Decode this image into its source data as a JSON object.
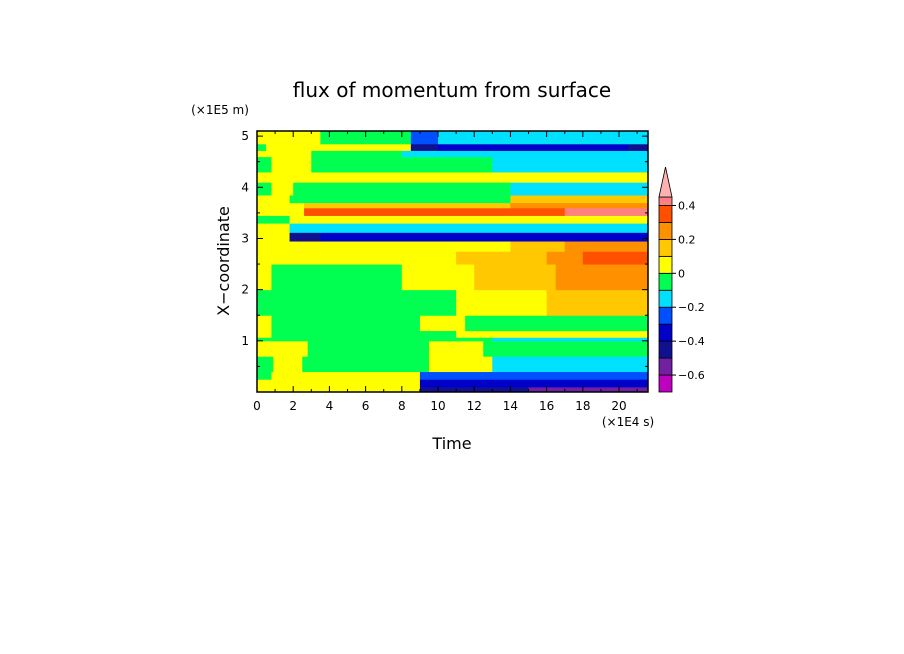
{
  "chart_data": {
    "type": "heatmap",
    "title": "flux of momentum from surface",
    "xlabel": "Time",
    "ylabel": "X−coordinate",
    "x_scale_label": "(×1E4 s)",
    "y_scale_label": "(×1E5 m)",
    "xlim": [
      0,
      21.6
    ],
    "ylim": [
      0,
      5.1
    ],
    "x_ticks": [
      0,
      2,
      4,
      6,
      8,
      10,
      12,
      14,
      16,
      18,
      20
    ],
    "x_tick_labels": [
      "0",
      "2",
      "4",
      "6",
      "8",
      "10",
      "12",
      "14",
      "16",
      "18",
      "20"
    ],
    "y_ticks": [
      1,
      2,
      3,
      4,
      5
    ],
    "y_tick_labels": [
      "1",
      "2",
      "3",
      "4",
      "5"
    ],
    "colorbar": {
      "levels": [
        -0.7,
        -0.6,
        -0.5,
        -0.4,
        -0.3,
        -0.2,
        -0.1,
        0,
        0.1,
        0.2,
        0.3,
        0.4,
        0.45
      ],
      "colors": [
        "#c000c0",
        "#7020a0",
        "#101090",
        "#0000c8",
        "#0050ff",
        "#00e0ff",
        "#00ff50",
        "#ffff00",
        "#ffc800",
        "#ff9000",
        "#ff5000",
        "#ff8080"
      ],
      "extend_color": "#ffb0b0",
      "tick_values": [
        -0.6,
        -0.4,
        -0.2,
        0,
        0.2,
        0.4
      ],
      "tick_labels": [
        "−0.6",
        "−0.4",
        "−0.2",
        "0",
        "0.2",
        "0.4"
      ]
    },
    "bands": [
      {
        "y0": 0.0,
        "y1": 0.1,
        "segments": [
          [
            0,
            9,
            0.05
          ],
          [
            9,
            15,
            -0.45
          ],
          [
            15,
            21.6,
            -0.55
          ]
        ]
      },
      {
        "y0": 0.1,
        "y1": 0.25,
        "segments": [
          [
            0,
            2,
            0.05
          ],
          [
            2,
            9,
            0.05
          ],
          [
            9,
            21.6,
            -0.35
          ]
        ]
      },
      {
        "y0": 0.25,
        "y1": 0.4,
        "segments": [
          [
            0,
            0.8,
            -0.05
          ],
          [
            0.8,
            9,
            0.05
          ],
          [
            9,
            21.6,
            -0.25
          ]
        ]
      },
      {
        "y0": 0.4,
        "y1": 0.7,
        "segments": [
          [
            0,
            0.9,
            -0.05
          ],
          [
            0.9,
            2.5,
            0.05
          ],
          [
            2.5,
            9.5,
            -0.05
          ],
          [
            9.5,
            13,
            0.05
          ],
          [
            13,
            21.6,
            -0.15
          ]
        ]
      },
      {
        "y0": 0.7,
        "y1": 1.0,
        "segments": [
          [
            0,
            0.6,
            0.05
          ],
          [
            0.6,
            2.8,
            0.05
          ],
          [
            2.8,
            9.5,
            -0.05
          ],
          [
            9.5,
            12.5,
            0.05
          ],
          [
            12.5,
            21.6,
            -0.05
          ]
        ]
      },
      {
        "y0": 1.0,
        "y1": 1.07,
        "segments": [
          [
            0,
            13,
            -0.05
          ],
          [
            13,
            21.6,
            -0.15
          ]
        ]
      },
      {
        "y0": 1.07,
        "y1": 1.2,
        "segments": [
          [
            0,
            0.8,
            0.05
          ],
          [
            0.8,
            11,
            -0.05
          ],
          [
            11,
            21.6,
            0.05
          ]
        ]
      },
      {
        "y0": 1.2,
        "y1": 1.5,
        "segments": [
          [
            0,
            0.8,
            0.05
          ],
          [
            0.8,
            9,
            -0.05
          ],
          [
            9,
            11.5,
            0.05
          ],
          [
            11.5,
            21.6,
            -0.05
          ]
        ]
      },
      {
        "y0": 1.5,
        "y1": 2.0,
        "segments": [
          [
            0,
            0.8,
            -0.05
          ],
          [
            0.8,
            11,
            -0.05
          ],
          [
            11,
            16,
            0.05
          ],
          [
            16,
            21.6,
            0.15
          ]
        ]
      },
      {
        "y0": 2.0,
        "y1": 2.5,
        "segments": [
          [
            0,
            0.8,
            0.05
          ],
          [
            0.8,
            8,
            -0.05
          ],
          [
            8,
            12,
            0.05
          ],
          [
            12,
            16.5,
            0.15
          ],
          [
            16.5,
            21.6,
            0.2
          ]
        ]
      },
      {
        "y0": 2.5,
        "y1": 2.75,
        "segments": [
          [
            0,
            1.8,
            0.05
          ],
          [
            1.8,
            11,
            0.05
          ],
          [
            11,
            16,
            0.15
          ],
          [
            16,
            18,
            0.25
          ],
          [
            18,
            21.6,
            0.35
          ]
        ]
      },
      {
        "y0": 2.75,
        "y1": 2.95,
        "segments": [
          [
            0,
            1.5,
            0.05
          ],
          [
            1.5,
            14,
            0.05
          ],
          [
            14,
            17,
            0.15
          ],
          [
            17,
            21.6,
            0.25
          ]
        ]
      },
      {
        "y0": 2.95,
        "y1": 3.12,
        "segments": [
          [
            0,
            1.8,
            0.05
          ],
          [
            1.8,
            3.5,
            -0.45
          ],
          [
            3.5,
            21.6,
            -0.35
          ]
        ]
      },
      {
        "y0": 3.12,
        "y1": 3.3,
        "segments": [
          [
            0,
            1.8,
            0.05
          ],
          [
            1.8,
            3.5,
            -0.15
          ],
          [
            3.5,
            21.6,
            -0.15
          ]
        ]
      },
      {
        "y0": 3.3,
        "y1": 3.45,
        "segments": [
          [
            0,
            1.8,
            -0.05
          ],
          [
            1.8,
            21.6,
            0.05
          ]
        ]
      },
      {
        "y0": 3.45,
        "y1": 3.6,
        "segments": [
          [
            0,
            1.8,
            0.05
          ],
          [
            1.8,
            2.6,
            0.05
          ],
          [
            2.6,
            14,
            0.35
          ],
          [
            14,
            17,
            0.35
          ],
          [
            17,
            21.6,
            0.42
          ]
        ]
      },
      {
        "y0": 3.6,
        "y1": 3.7,
        "segments": [
          [
            0,
            2.6,
            0.05
          ],
          [
            2.6,
            14,
            0.15
          ],
          [
            14,
            21.6,
            0.25
          ]
        ]
      },
      {
        "y0": 3.7,
        "y1": 3.85,
        "segments": [
          [
            0,
            1.8,
            0.05
          ],
          [
            1.8,
            14,
            -0.05
          ],
          [
            14,
            21.6,
            0.15
          ]
        ]
      },
      {
        "y0": 3.85,
        "y1": 4.1,
        "segments": [
          [
            0,
            0.8,
            -0.05
          ],
          [
            0.8,
            2,
            0.05
          ],
          [
            2,
            14,
            -0.05
          ],
          [
            14,
            21.6,
            -0.15
          ]
        ]
      },
      {
        "y0": 4.1,
        "y1": 4.3,
        "segments": [
          [
            0,
            1.8,
            0.05
          ],
          [
            1.8,
            21.6,
            0.05
          ]
        ]
      },
      {
        "y0": 4.3,
        "y1": 4.6,
        "segments": [
          [
            0,
            0.8,
            -0.05
          ],
          [
            0.8,
            3,
            0.05
          ],
          [
            3,
            13,
            -0.05
          ],
          [
            13,
            21.6,
            -0.15
          ]
        ]
      },
      {
        "y0": 4.6,
        "y1": 4.72,
        "segments": [
          [
            0,
            3,
            0.05
          ],
          [
            3,
            8,
            -0.05
          ],
          [
            8,
            21.6,
            -0.15
          ]
        ]
      },
      {
        "y0": 4.72,
        "y1": 4.85,
        "segments": [
          [
            0,
            0.5,
            -0.05
          ],
          [
            0.5,
            8.5,
            0.05
          ],
          [
            8.5,
            10,
            -0.45
          ],
          [
            10,
            20.5,
            -0.35
          ],
          [
            20.5,
            21.6,
            -0.45
          ]
        ]
      },
      {
        "y0": 4.85,
        "y1": 5.1,
        "segments": [
          [
            0,
            3.5,
            0.05
          ],
          [
            3.5,
            8.5,
            -0.05
          ],
          [
            8.5,
            10,
            -0.25
          ],
          [
            10,
            21.6,
            -0.15
          ]
        ]
      }
    ]
  }
}
